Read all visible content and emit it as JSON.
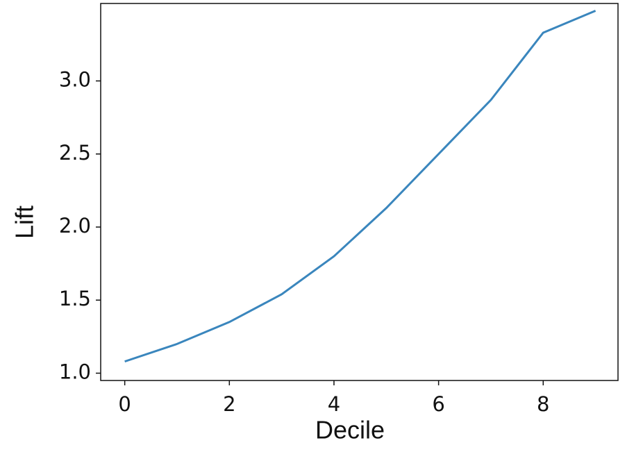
{
  "chart_data": {
    "type": "line",
    "x": [
      0,
      1,
      2,
      3,
      4,
      5,
      6,
      7,
      8,
      9
    ],
    "values": [
      1.08,
      1.2,
      1.35,
      1.54,
      1.8,
      2.13,
      2.5,
      2.87,
      3.33,
      3.48
    ],
    "color": "#3a86bd",
    "x_label": "Decile",
    "y_label": "Lift",
    "xlim": [
      -0.46,
      9.43
    ],
    "ylim": [
      0.95,
      3.53
    ],
    "xticks": [
      0,
      2,
      4,
      6,
      8
    ],
    "yticks": [
      {
        "value": 1,
        "label": "1.0"
      },
      1.5,
      {
        "value": 2,
        "label": "2.0"
      },
      2.5,
      {
        "value": 3,
        "label": "3.0"
      }
    ],
    "grid": false
  }
}
